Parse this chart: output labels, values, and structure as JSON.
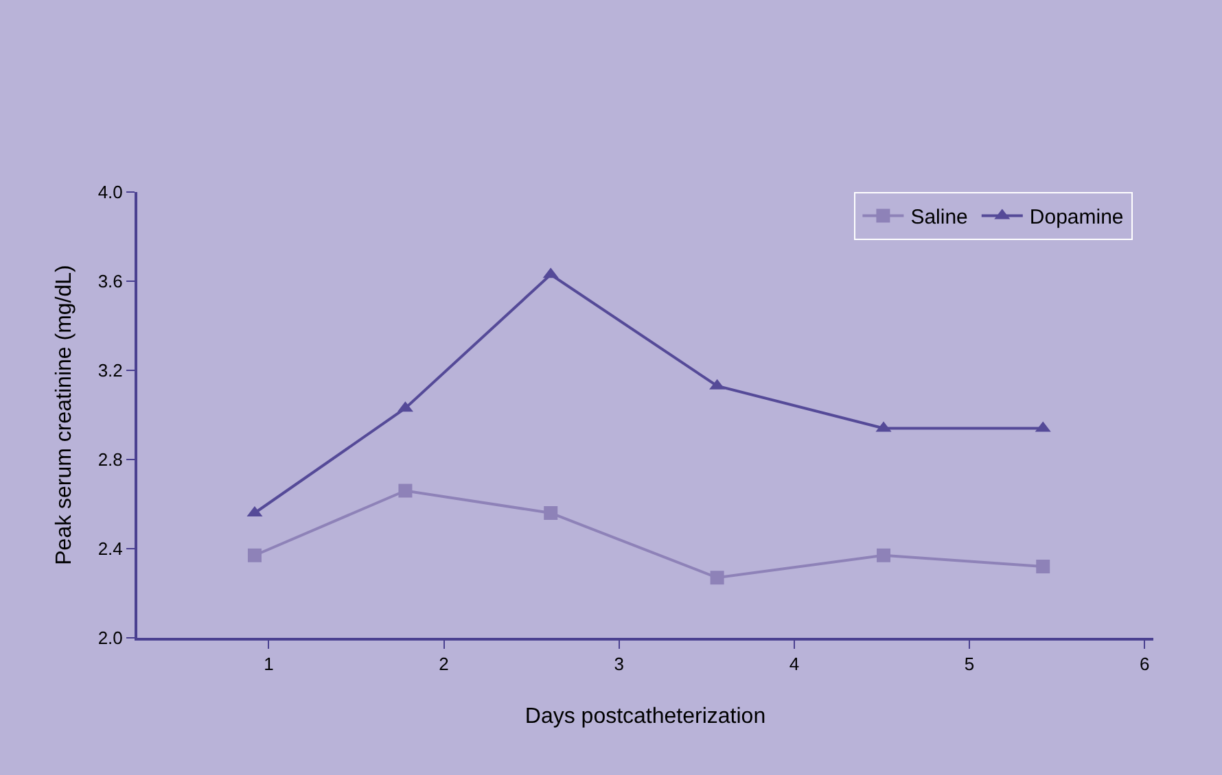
{
  "chart_data": {
    "type": "line",
    "xlabel": "Days postcatheterization",
    "ylabel": "Peak serum creatinine (mg/dL)",
    "x": [
      0.92,
      1.78,
      2.61,
      3.56,
      4.51,
      5.42
    ],
    "series": [
      {
        "name": "Saline",
        "color": "#8e82b8",
        "marker": "square",
        "values": [
          2.37,
          2.66,
          2.56,
          2.27,
          2.37,
          2.32
        ]
      },
      {
        "name": "Dopamine",
        "color": "#554a98",
        "marker": "triangle",
        "values": [
          2.56,
          3.03,
          3.63,
          3.13,
          2.94,
          2.94
        ]
      }
    ],
    "xlim": [
      0.25,
      6.05
    ],
    "xticks": [
      1,
      2,
      3,
      4,
      5,
      6
    ],
    "ylim": [
      2.0,
      4.0
    ],
    "yticks": [
      {
        "value": 2.0,
        "label": "2.0"
      },
      {
        "value": 2.4,
        "label": "2.4"
      },
      {
        "value": 2.8,
        "label": "2.8"
      },
      {
        "value": 3.2,
        "label": "3.2"
      },
      {
        "value": 3.6,
        "label": "3.6"
      },
      {
        "value": 4.0,
        "label": "4.0"
      }
    ],
    "grid": false,
    "legend": "top right",
    "line_style": "solid"
  }
}
